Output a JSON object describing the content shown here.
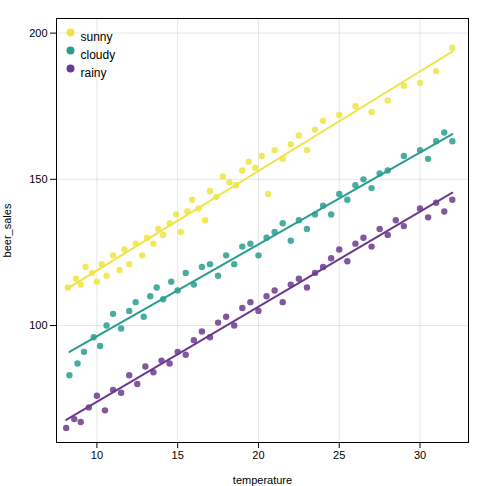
{
  "chart_data": {
    "type": "scatter",
    "xlabel": "temperature",
    "ylabel": "beer_sales",
    "xlim": [
      7.5,
      33
    ],
    "ylim": [
      60,
      205
    ],
    "xticks": [
      10,
      15,
      20,
      25,
      30
    ],
    "yticks": [
      100,
      150,
      200
    ],
    "grid": true,
    "legend": "upper left",
    "series": [
      {
        "name": "sunny",
        "color": "#f0e442",
        "marker": "circle",
        "line_style": "solid",
        "x": [
          8.2,
          8.7,
          9.0,
          9.3,
          9.7,
          10.0,
          10.3,
          10.6,
          11.0,
          11.4,
          11.7,
          12.0,
          12.4,
          12.8,
          13.1,
          13.5,
          13.8,
          14.1,
          14.5,
          14.9,
          15.2,
          15.6,
          15.9,
          16.3,
          16.7,
          17.0,
          17.4,
          17.8,
          18.2,
          18.6,
          19.0,
          19.4,
          19.8,
          20.2,
          20.6,
          21.0,
          21.5,
          22.0,
          22.5,
          23.0,
          23.5,
          24.0,
          25.0,
          26.0,
          27.0,
          28.0,
          29.0,
          30.0,
          31.0,
          32.0
        ],
        "values": [
          113,
          116,
          114,
          120,
          118,
          115,
          121,
          117,
          124,
          119,
          126,
          121,
          128,
          124,
          130,
          128,
          133,
          131,
          135,
          138,
          132,
          139,
          143,
          140,
          136,
          146,
          144,
          151,
          149,
          148,
          153,
          156,
          154,
          158,
          145,
          160,
          157,
          162,
          165,
          160,
          167,
          170,
          172,
          175,
          173,
          177,
          182,
          183,
          187,
          195
        ]
      },
      {
        "name": "cloudy",
        "color": "#2a9d8f",
        "marker": "circle",
        "line_style": "solid",
        "x": [
          8.3,
          8.8,
          9.2,
          9.8,
          10.2,
          10.6,
          11.0,
          11.5,
          12.0,
          12.4,
          12.9,
          13.3,
          13.7,
          14.1,
          14.6,
          15.0,
          15.5,
          16.0,
          16.5,
          17.0,
          17.5,
          18.0,
          18.5,
          19.0,
          19.5,
          20.0,
          20.5,
          21.0,
          21.5,
          22.0,
          22.5,
          23.0,
          23.5,
          24.0,
          24.5,
          25.0,
          25.5,
          26.0,
          26.5,
          27.0,
          27.5,
          28.0,
          29.0,
          30.0,
          30.5,
          31.0,
          31.5,
          32.0
        ],
        "values": [
          83,
          87,
          91,
          96,
          93,
          100,
          104,
          99,
          105,
          108,
          103,
          110,
          113,
          109,
          115,
          112,
          118,
          114,
          120,
          121,
          117,
          124,
          121,
          127,
          128,
          124,
          130,
          132,
          135,
          129,
          136,
          133,
          138,
          141,
          138,
          145,
          143,
          148,
          150,
          147,
          152,
          153,
          158,
          160,
          157,
          163,
          166,
          163
        ]
      },
      {
        "name": "rainy",
        "color": "#6b3a8c",
        "marker": "circle",
        "line_style": "solid",
        "x": [
          8.1,
          8.6,
          9.0,
          9.5,
          10.0,
          10.5,
          11.0,
          11.5,
          12.0,
          12.5,
          13.0,
          13.5,
          14.0,
          14.5,
          15.0,
          15.5,
          16.0,
          16.5,
          17.0,
          17.5,
          18.0,
          18.5,
          19.0,
          19.5,
          20.0,
          20.5,
          21.0,
          21.5,
          22.0,
          22.5,
          23.0,
          23.5,
          24.0,
          24.5,
          25.0,
          25.5,
          26.0,
          26.5,
          27.0,
          27.5,
          28.0,
          28.5,
          29.0,
          30.0,
          30.5,
          31.0,
          31.5,
          32.0
        ],
        "values": [
          65,
          68,
          67,
          72,
          76,
          71,
          78,
          77,
          83,
          80,
          86,
          84,
          88,
          87,
          91,
          90,
          95,
          98,
          96,
          101,
          103,
          100,
          106,
          108,
          105,
          110,
          112,
          108,
          114,
          116,
          113,
          118,
          120,
          123,
          126,
          122,
          128,
          130,
          127,
          133,
          131,
          136,
          134,
          140,
          137,
          142,
          139,
          143
        ]
      }
    ]
  }
}
